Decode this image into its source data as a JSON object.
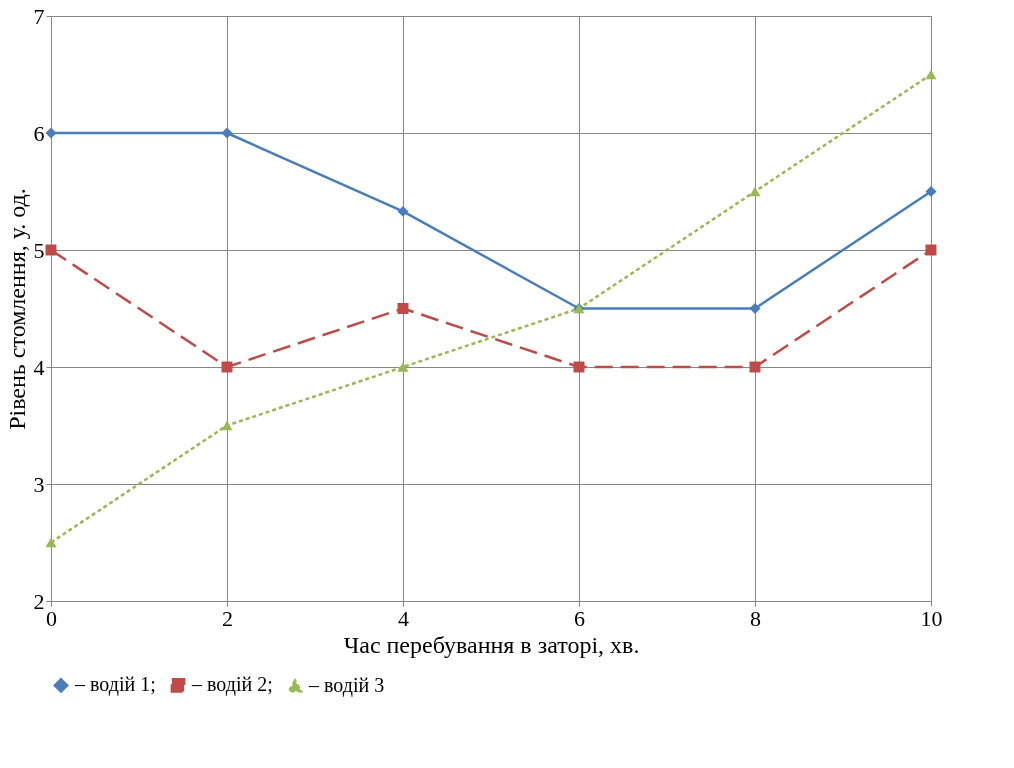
{
  "chart_data": {
    "type": "line",
    "xlabel": "Час перебування в заторі, хв.",
    "ylabel": "Рівень стомлення, у. од.",
    "x": [
      0,
      2,
      4,
      6,
      8,
      10
    ],
    "series": [
      {
        "name": "– водій 1;",
        "color": "#4a7ebb",
        "marker": "diamond",
        "line_style": "solid",
        "values": [
          6,
          6,
          5.33,
          4.5,
          4.5,
          5.5
        ]
      },
      {
        "name": "– водій 2;",
        "color": "#be4b48",
        "marker": "square",
        "line_style": "dashed",
        "values": [
          5,
          4,
          4.5,
          4,
          4,
          5
        ]
      },
      {
        "name": "– водій 3",
        "color": "#98b954",
        "marker": "triangle",
        "line_style": "dotted",
        "values": [
          2.5,
          3.5,
          4,
          4.5,
          5.5,
          6.5
        ]
      }
    ],
    "xlim": [
      0,
      10
    ],
    "xticks": [
      0,
      2,
      4,
      6,
      8,
      10
    ],
    "ylim": [
      2,
      7
    ],
    "yticks": [
      2,
      3,
      4,
      5,
      6,
      7
    ],
    "grid": true,
    "legend": "bottom"
  }
}
